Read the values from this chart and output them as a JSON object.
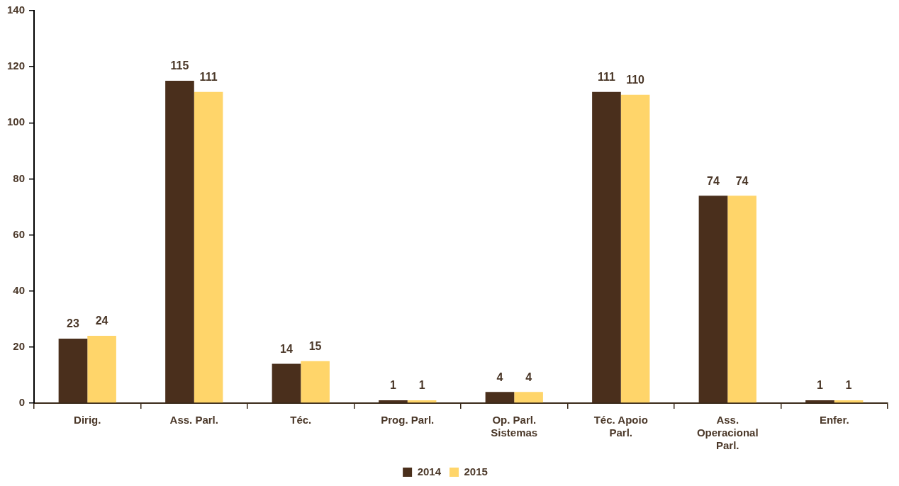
{
  "chart_data": {
    "type": "bar",
    "categories": [
      "Dirig.",
      "Ass. Parl.",
      "Téc.",
      "Prog. Parl.",
      "Op. Parl. Sistemas",
      "Téc. Apoio Parl.",
      "Ass. Operacional Parl.",
      "Enfer."
    ],
    "series": [
      {
        "name": "2014",
        "color": "#4a2f1c",
        "values": [
          23,
          115,
          14,
          1,
          4,
          111,
          74,
          1
        ]
      },
      {
        "name": "2015",
        "color": "#ffd56a",
        "values": [
          24,
          111,
          15,
          1,
          4,
          110,
          74,
          1
        ]
      }
    ],
    "ylim": [
      0,
      140
    ],
    "yticks": [
      0,
      20,
      40,
      60,
      80,
      100,
      120,
      140
    ],
    "data_labels": true,
    "legend": "bottom"
  }
}
